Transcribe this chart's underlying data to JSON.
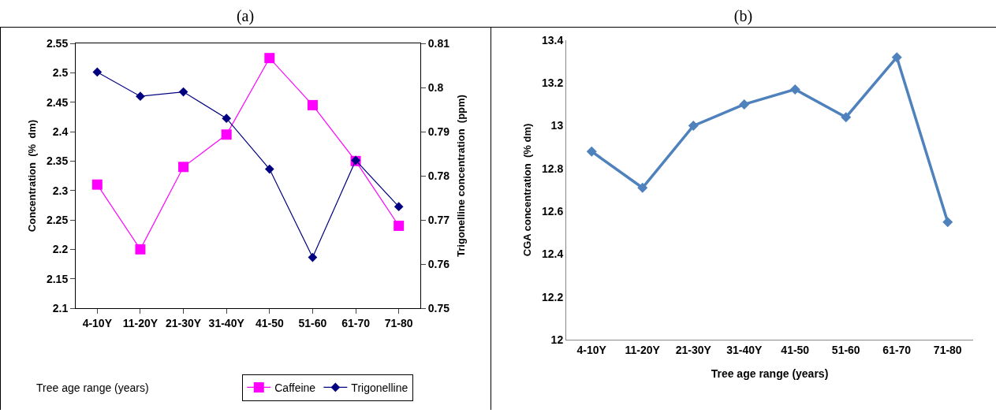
{
  "chart_data": [
    {
      "type": "line",
      "title": "(a)",
      "xlabel": "Tree age range (years)",
      "ylabel": "Concentration  (%  dm)",
      "y2label": "Trigonelline concentration  (ppm)",
      "categories": [
        "4-10Y",
        "11-20Y",
        "21-30Y",
        "31-40Y",
        "41-50",
        "51-60",
        "61-70",
        "71-80"
      ],
      "series": [
        {
          "name": "Caffeine",
          "color": "#ff00ff",
          "marker": "square",
          "values": [
            2.31,
            2.2,
            2.34,
            2.395,
            2.525,
            2.445,
            2.35,
            2.24
          ]
        },
        {
          "name": "Trigonelline",
          "color": "#000080",
          "marker": "diamond",
          "axis": "y2",
          "values": [
            0.8035,
            0.798,
            0.799,
            0.793,
            0.7815,
            0.7615,
            0.7835,
            0.773
          ]
        }
      ],
      "ylim": [
        2.1,
        2.55
      ],
      "yticks": [
        2.1,
        2.15,
        2.2,
        2.25,
        2.3,
        2.35,
        2.4,
        2.45,
        2.5,
        2.55
      ],
      "y2lim": [
        0.75,
        0.81
      ],
      "y2ticks": [
        0.75,
        0.76,
        0.77,
        0.78,
        0.79,
        0.8,
        0.81
      ],
      "grid": false,
      "legend": "bottom right"
    },
    {
      "type": "line",
      "title": "(b)",
      "xlabel": "Tree age range (years)",
      "ylabel": "CGA concentration  (% dm)",
      "categories": [
        "4-10Y",
        "11-20Y",
        "21-30Y",
        "31-40Y",
        "41-50",
        "51-60",
        "61-70",
        "71-80"
      ],
      "series": [
        {
          "color": "#4f81bd",
          "values": [
            12.88,
            12.71,
            13.0,
            13.1,
            13.17,
            13.04,
            13.32,
            12.55
          ]
        }
      ],
      "marker": "diamond",
      "ylim": [
        12,
        13.4
      ],
      "yticks": [
        12,
        12.2,
        12.4,
        12.6,
        12.8,
        13,
        13.2,
        13.4
      ],
      "grid": false,
      "legend": false
    }
  ]
}
